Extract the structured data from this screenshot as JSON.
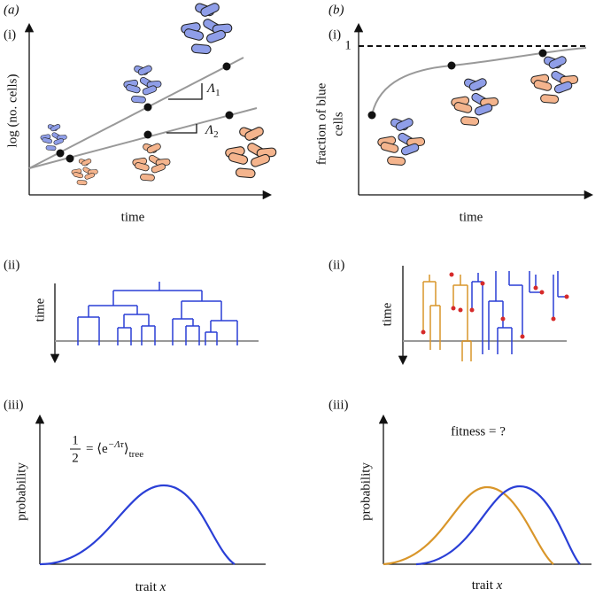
{
  "panel_a": {
    "label": "(a)",
    "row_i": {
      "label": "(i)",
      "y_label": "log (no. cells)",
      "x_label": "time",
      "slope_1": {
        "symbol": "Λ",
        "subscript": "1"
      },
      "slope_2": {
        "symbol": "Λ",
        "subscript": "2"
      }
    },
    "row_ii": {
      "label": "(ii)",
      "axis_label": "time"
    },
    "row_iii": {
      "label": "(iii)",
      "y_label": "probability",
      "x_label": {
        "text": "trait",
        "variable": "x"
      },
      "formula": {
        "numerator": "1",
        "denominator": "2",
        "middle": "= ⟨e",
        "exponent": "−Λτ",
        "close": "⟩",
        "subscript": "tree"
      }
    }
  },
  "panel_b": {
    "label": "(b)",
    "row_i": {
      "label": "(i)",
      "y_label": [
        "fraction of blue",
        "cells"
      ],
      "x_label": "time",
      "asymptote": "1"
    },
    "row_ii": {
      "label": "(ii)",
      "axis_label": "time"
    },
    "row_iii": {
      "label": "(iii)",
      "y_label": "probability",
      "x_label": {
        "text": "trait",
        "variable": "x"
      },
      "question": "fitness = ?"
    }
  }
}
